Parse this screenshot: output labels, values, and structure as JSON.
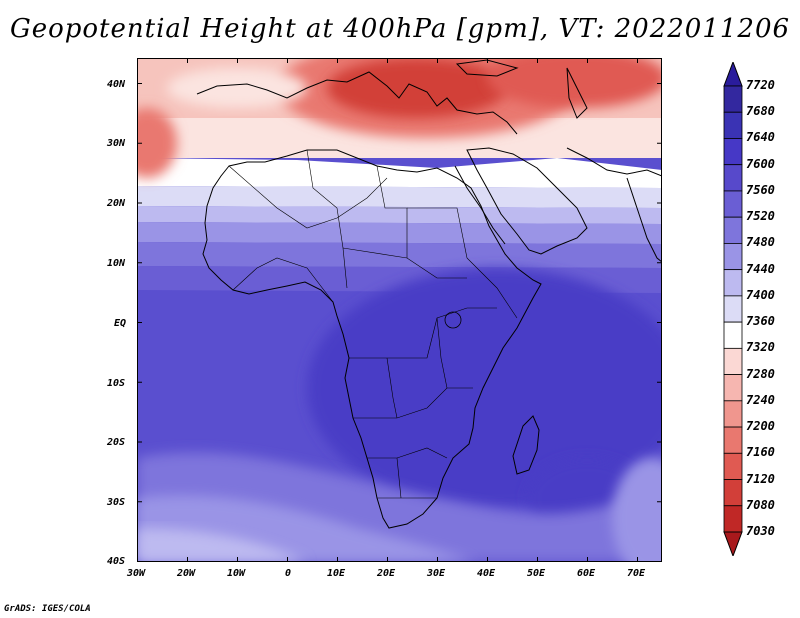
{
  "title": "Geopotential Height at 400hPa [gpm], VT: 2022011206",
  "credit": "GrADS: IGES/COLA",
  "lat_ticks": [
    "40N",
    "30N",
    "20N",
    "10N",
    "EQ",
    "10S",
    "20S",
    "30S",
    "40S"
  ],
  "lon_ticks": [
    "30W",
    "20W",
    "10W",
    "0",
    "10E",
    "20E",
    "30E",
    "40E",
    "50E",
    "60E",
    "70E"
  ],
  "colorbar": {
    "levels": [
      "7720",
      "7680",
      "7640",
      "7600",
      "7560",
      "7520",
      "7480",
      "7440",
      "7400",
      "7360",
      "7320",
      "7280",
      "7240",
      "7200",
      "7160",
      "7120",
      "7080",
      "7030"
    ],
    "colors": [
      "#2a1c9c",
      "#33289f",
      "#3a33b4",
      "#4638c6",
      "#5749cb",
      "#6a5ed4",
      "#7e75dc",
      "#9a94e6",
      "#bdbaf0",
      "#dcdcf6",
      "#ffffff",
      "#fbd8d4",
      "#f6b6b0",
      "#f0968e",
      "#e9786f",
      "#e05a52",
      "#d23f39",
      "#c02826",
      "#a8191c"
    ]
  }
}
